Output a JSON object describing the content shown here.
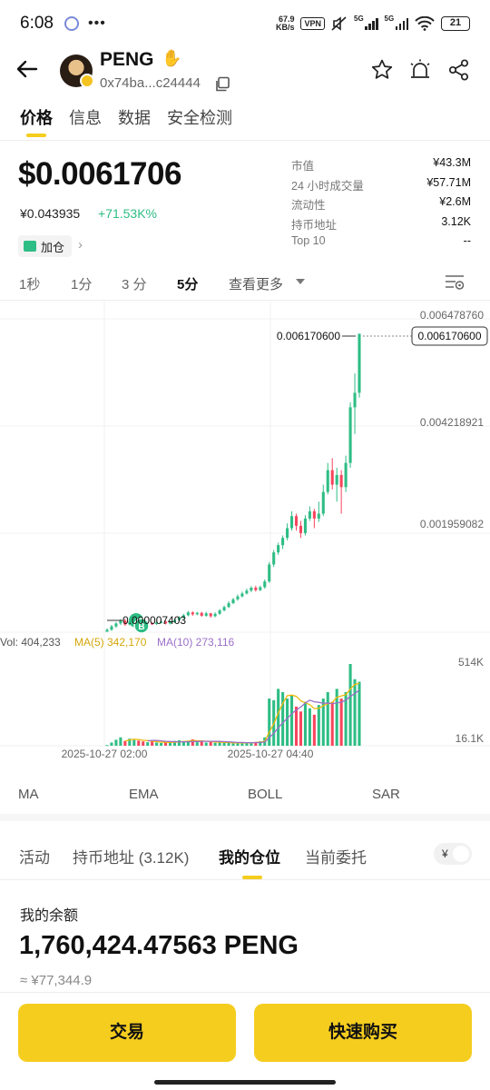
{
  "status_bar": {
    "time": "6:08",
    "net_speed_value": "67.9",
    "net_speed_unit": "KB/s",
    "vpn_label": "VPN",
    "sim1_label": "5G",
    "sim2_label": "5G",
    "battery": "21"
  },
  "header": {
    "token_name": "PENG",
    "token_address": "0x74ba...c24444",
    "icons": [
      "back-arrow-icon",
      "star-icon",
      "alert-icon",
      "share-icon",
      "copy-icon",
      "wave-hand-icon"
    ]
  },
  "tabs": [
    {
      "label": "价格",
      "active": true
    },
    {
      "label": "信息",
      "active": false
    },
    {
      "label": "数据",
      "active": false
    },
    {
      "label": "安全检测",
      "active": false
    }
  ],
  "price": {
    "main": "$0.0061706",
    "cny": "¥0.043935",
    "change": "+71.53K%",
    "add_position_label": "加仓"
  },
  "stats": [
    {
      "label": "市值",
      "value": "¥43.3M"
    },
    {
      "label": "24 小时成交量",
      "value": "¥57.71M"
    },
    {
      "label": "流动性",
      "value": "¥2.6M"
    },
    {
      "label": "持币地址",
      "value": "3.12K"
    },
    {
      "label": "Top 10",
      "value": "--"
    }
  ],
  "intervals": [
    {
      "label": "1秒",
      "active": false
    },
    {
      "label": "1分",
      "active": false
    },
    {
      "label": "3 分",
      "active": false
    },
    {
      "label": "5分",
      "active": true
    }
  ],
  "interval_more": "查看更多",
  "chart": {
    "y_axis_labels": [
      "0.006478760",
      "0.004218921",
      "0.001959082"
    ],
    "last_price_tag": "0.006170600",
    "high_label": "0.006170600",
    "low_label": "0.000007403",
    "volume_summary": {
      "vol": "Vol: 404,233",
      "ma5": "MA(5) 342,170",
      "ma10": "MA(10) 273,116"
    },
    "volume_axis": [
      "514K",
      "16.1K"
    ],
    "x_axis_labels": [
      "2025-10-27 02:00",
      "2025-10-27 04:40"
    ],
    "colors": {
      "up": "#2ebd85",
      "down": "#f6465d",
      "ma5": "#f0b90b",
      "ma10": "#9c6fc7"
    }
  },
  "chart_data": {
    "type": "candlestick",
    "title": "",
    "xlabel": "",
    "ylabel": "",
    "ylim": [
      0.0,
      0.00647876
    ],
    "x_range": [
      "2025-10-27 02:00",
      "2025-10-27 04:40"
    ],
    "last_price": 0.0061706,
    "candles": [
      {
        "o": 1e-05,
        "c": 5e-05,
        "h": 8e-05,
        "l": 7.4e-06
      },
      {
        "o": 5e-05,
        "c": 0.00012,
        "h": 0.00015,
        "l": 3e-05
      },
      {
        "o": 0.00012,
        "c": 0.00018,
        "h": 0.00021,
        "l": 9e-05
      },
      {
        "o": 0.00018,
        "c": 0.00024,
        "h": 0.00027,
        "l": 0.00015
      },
      {
        "o": 0.00024,
        "c": 0.00016,
        "h": 0.00028,
        "l": 0.00013
      },
      {
        "o": 0.00016,
        "c": 0.00022,
        "h": 0.00025,
        "l": 0.00014
      },
      {
        "o": 0.00022,
        "c": 0.00028,
        "h": 0.00031,
        "l": 0.0002
      },
      {
        "o": 0.00028,
        "c": 0.0002,
        "h": 0.0003,
        "l": 0.00017
      },
      {
        "o": 0.0002,
        "c": 0.00015,
        "h": 0.00023,
        "l": 0.00012
      },
      {
        "o": 0.00015,
        "c": 0.00019,
        "h": 0.00022,
        "l": 0.00013
      },
      {
        "o": 0.00019,
        "c": 0.00017,
        "h": 0.00021,
        "l": 0.00015
      },
      {
        "o": 0.00017,
        "c": 0.0002,
        "h": 0.00023,
        "l": 0.00015
      },
      {
        "o": 0.0002,
        "c": 0.00022,
        "h": 0.00025,
        "l": 0.00018
      },
      {
        "o": 0.00022,
        "c": 0.00018,
        "h": 0.00024,
        "l": 0.00016
      },
      {
        "o": 0.00018,
        "c": 0.00021,
        "h": 0.00024,
        "l": 0.00016
      },
      {
        "o": 0.00021,
        "c": 0.00025,
        "h": 0.00028,
        "l": 0.00019
      },
      {
        "o": 0.00025,
        "c": 0.0003,
        "h": 0.00033,
        "l": 0.00023
      },
      {
        "o": 0.0003,
        "c": 0.00035,
        "h": 0.00038,
        "l": 0.00028
      },
      {
        "o": 0.00035,
        "c": 0.00041,
        "h": 0.00044,
        "l": 0.00033
      },
      {
        "o": 0.00041,
        "c": 0.00037,
        "h": 0.00043,
        "l": 0.00034
      },
      {
        "o": 0.00037,
        "c": 0.0004,
        "h": 0.00042,
        "l": 0.00035
      },
      {
        "o": 0.0004,
        "c": 0.00034,
        "h": 0.00042,
        "l": 0.00032
      },
      {
        "o": 0.00034,
        "c": 0.00039,
        "h": 0.00042,
        "l": 0.00032
      },
      {
        "o": 0.00039,
        "c": 0.00033,
        "h": 0.0004,
        "l": 0.0003
      },
      {
        "o": 0.00033,
        "c": 0.00038,
        "h": 0.00041,
        "l": 0.00031
      },
      {
        "o": 0.00038,
        "c": 0.00045,
        "h": 0.00048,
        "l": 0.00036
      },
      {
        "o": 0.00045,
        "c": 0.00052,
        "h": 0.00055,
        "l": 0.00043
      },
      {
        "o": 0.00052,
        "c": 0.0006,
        "h": 0.00064,
        "l": 0.0005
      },
      {
        "o": 0.0006,
        "c": 0.00068,
        "h": 0.00071,
        "l": 0.00058
      },
      {
        "o": 0.00068,
        "c": 0.00074,
        "h": 0.00078,
        "l": 0.00065
      },
      {
        "o": 0.00074,
        "c": 0.0008,
        "h": 0.00084,
        "l": 0.00072
      },
      {
        "o": 0.0008,
        "c": 0.00086,
        "h": 0.0009,
        "l": 0.00078
      },
      {
        "o": 0.00086,
        "c": 0.00092,
        "h": 0.00095,
        "l": 0.00083
      },
      {
        "o": 0.00092,
        "c": 0.00087,
        "h": 0.00096,
        "l": 0.00084
      },
      {
        "o": 0.00087,
        "c": 0.00093,
        "h": 0.00096,
        "l": 0.00085
      },
      {
        "o": 0.00093,
        "c": 0.00105,
        "h": 0.00109,
        "l": 0.0009
      },
      {
        "o": 0.00105,
        "c": 0.0014,
        "h": 0.00145,
        "l": 0.00102
      },
      {
        "o": 0.0014,
        "c": 0.00165,
        "h": 0.0017,
        "l": 0.00135
      },
      {
        "o": 0.00165,
        "c": 0.0018,
        "h": 0.00185,
        "l": 0.0016
      },
      {
        "o": 0.0018,
        "c": 0.00195,
        "h": 0.002,
        "l": 0.00172
      },
      {
        "o": 0.00195,
        "c": 0.00215,
        "h": 0.00225,
        "l": 0.0019
      },
      {
        "o": 0.00215,
        "c": 0.0024,
        "h": 0.0025,
        "l": 0.0021
      },
      {
        "o": 0.0024,
        "c": 0.0022,
        "h": 0.00245,
        "l": 0.0021
      },
      {
        "o": 0.0022,
        "c": 0.00205,
        "h": 0.0023,
        "l": 0.00195
      },
      {
        "o": 0.00205,
        "c": 0.00235,
        "h": 0.00242,
        "l": 0.002
      },
      {
        "o": 0.00235,
        "c": 0.0025,
        "h": 0.0026,
        "l": 0.0023
      },
      {
        "o": 0.0025,
        "c": 0.00235,
        "h": 0.00255,
        "l": 0.00215
      },
      {
        "o": 0.00235,
        "c": 0.00245,
        "h": 0.0027,
        "l": 0.00228
      },
      {
        "o": 0.00245,
        "c": 0.0029,
        "h": 0.00305,
        "l": 0.0024
      },
      {
        "o": 0.0029,
        "c": 0.00335,
        "h": 0.0035,
        "l": 0.00285
      },
      {
        "o": 0.00335,
        "c": 0.00305,
        "h": 0.0036,
        "l": 0.00295
      },
      {
        "o": 0.00305,
        "c": 0.00325,
        "h": 0.0034,
        "l": 0.0027
      },
      {
        "o": 0.00325,
        "c": 0.003,
        "h": 0.00335,
        "l": 0.00245
      },
      {
        "o": 0.003,
        "c": 0.0035,
        "h": 0.00365,
        "l": 0.0029
      },
      {
        "o": 0.0035,
        "c": 0.00465,
        "h": 0.00475,
        "l": 0.0034
      },
      {
        "o": 0.00465,
        "c": 0.00495,
        "h": 0.00535,
        "l": 0.0041
      },
      {
        "o": 0.00495,
        "c": 0.00617,
        "h": 0.006171,
        "l": 0.00485
      }
    ],
    "volumes": [
      12000,
      28000,
      45000,
      60000,
      38000,
      52000,
      44000,
      40000,
      35000,
      30000,
      33000,
      28000,
      25000,
      30000,
      26000,
      38000,
      42000,
      36000,
      40000,
      48000,
      30000,
      36000,
      28000,
      32000,
      26000,
      30000,
      28000,
      25000,
      22000,
      24000,
      30000,
      26000,
      28000,
      32000,
      36000,
      60000,
      300000,
      290000,
      360000,
      340000,
      300000,
      320000,
      250000,
      220000,
      280000,
      240000,
      200000,
      260000,
      300000,
      340000,
      280000,
      360000,
      300000,
      340000,
      514000,
      420000,
      404233
    ],
    "volume_ylim": [
      16100,
      514000
    ]
  },
  "indicators": [
    "MA",
    "EMA",
    "BOLL",
    "SAR"
  ],
  "position_tabs": [
    {
      "label": "活动",
      "active": false
    },
    {
      "label": "持币地址 (3.12K)",
      "active": false
    },
    {
      "label": "我的仓位",
      "active": true
    },
    {
      "label": "当前委托",
      "active": false
    }
  ],
  "currency_toggle": "¥",
  "balance": {
    "title": "我的余额",
    "amount": "1,760,424.47563 PENG",
    "cny": "≈ ¥77,344.9"
  },
  "buttons": {
    "trade": "交易",
    "quick_buy": "快速购买"
  }
}
